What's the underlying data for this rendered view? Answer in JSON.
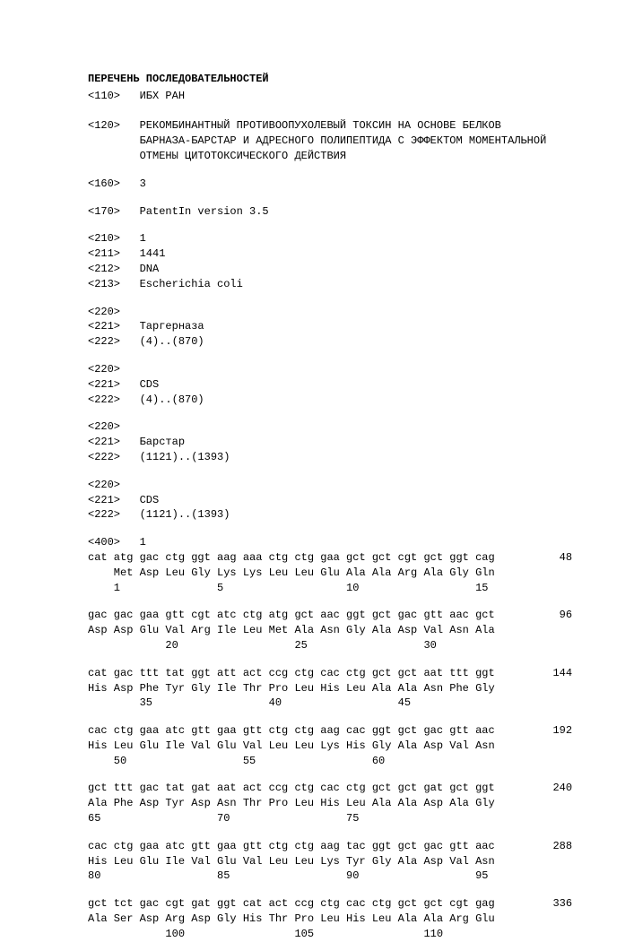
{
  "title": "ПЕРЕЧЕНЬ ПОСЛЕДОВАТЕЛЬНОСТЕЙ",
  "header": [
    "<110>   ИБХ РАН",
    "",
    "<120>   РЕКОМБИНАНТНЫЙ ПРОТИВООПУХОЛЕВЫЙ ТОКСИН НА ОСНОВЕ БЕЛКОВ",
    "        БАРНАЗА-БАРСТАР И АДРЕСНОГО ПОЛИПЕПТИДА С ЭФФЕКТОМ МОМЕНТАЛЬНОЙ",
    "        ОТМЕНЫ ЦИТОТОКСИЧЕСКОГО ДЕЙСТВИЯ"
  ],
  "blocks": [
    [
      "<160>   3"
    ],
    [
      "<170>   PatentIn version 3.5"
    ],
    [
      "<210>   1",
      "<211>   1441",
      "<212>   DNA",
      "<213>   Escherichia coli"
    ],
    [
      ""
    ],
    [
      "<220>",
      "<221>   Таргерназа",
      "<222>   (4)..(870)"
    ],
    [
      "<220>",
      "<221>   CDS",
      "<222>   (4)..(870)"
    ],
    [
      "<220>",
      "<221>   Барстар",
      "<222>   (1121)..(1393)"
    ],
    [
      "<220>",
      "<221>   CDS",
      "<222>   (1121)..(1393)"
    ],
    [
      "<400>   1"
    ]
  ],
  "seq": [
    {
      "r1": "cat atg gac ctg ggt aag aaa ctg ctg gaa gct gct cgt gct ggt cag          48",
      "r2": "    Met Asp Leu Gly Lys Lys Leu Leu Glu Ala Ala Arg Ala Gly Gln",
      "r3": "    1               5                   10                  15"
    },
    {
      "r1": "gac gac gaa gtt cgt atc ctg atg gct aac ggt gct gac gtt aac gct          96",
      "r2": "Asp Asp Glu Val Arg Ile Leu Met Ala Asn Gly Ala Asp Val Asn Ala",
      "r3": "            20                  25                  30"
    },
    {
      "r1": "cat gac ttt tat ggt att act ccg ctg cac ctg gct gct aat ttt ggt         144",
      "r2": "His Asp Phe Tyr Gly Ile Thr Pro Leu His Leu Ala Ala Asn Phe Gly",
      "r3": "        35                  40                  45"
    },
    {
      "r1": "cac ctg gaa atc gtt gaa gtt ctg ctg aag cac ggt gct gac gtt aac         192",
      "r2": "His Leu Glu Ile Val Glu Val Leu Leu Lys His Gly Ala Asp Val Asn",
      "r3": "    50                  55                  60"
    },
    {
      "r1": "gct ttt gac tat gat aat act ccg ctg cac ctg gct gct gat gct ggt         240",
      "r2": "Ala Phe Asp Tyr Asp Asn Thr Pro Leu His Leu Ala Ala Asp Ala Gly",
      "r3": "65                  70                  75"
    },
    {
      "r1": "cac ctg gaa atc gtt gaa gtt ctg ctg aag tac ggt gct gac gtt aac         288",
      "r2": "His Leu Glu Ile Val Glu Val Leu Leu Lys Tyr Gly Ala Asp Val Asn",
      "r3": "80                  85                  90                  95"
    },
    {
      "r1": "gct tct gac cgt gat ggt cat act ccg ctg cac ctg gct gct cgt gag         336",
      "r2": "Ala Ser Asp Arg Asp Gly His Thr Pro Leu His Leu Ala Ala Arg Glu",
      "r3": "            100                 105                 110"
    }
  ]
}
